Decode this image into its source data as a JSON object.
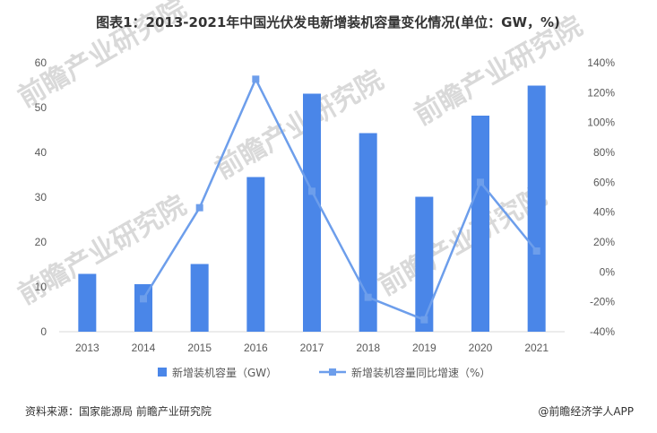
{
  "title": "图表1：2013-2021年中国光伏发电新增装机容量变化情况(单位：GW，%)",
  "source": "资料来源：国家能源局 前瞻产业研究院",
  "brand": "@前瞻经济学人APP",
  "watermark": "前瞻产业研究院",
  "colors": {
    "bar": "#4a86e8",
    "line": "#6d9eeb",
    "text": "#333333",
    "tick": "#595959"
  },
  "chart_data": {
    "type": "bar",
    "categories": [
      "2013",
      "2014",
      "2015",
      "2016",
      "2017",
      "2018",
      "2019",
      "2020",
      "2021"
    ],
    "series": [
      {
        "name": "新增装机容量（GW）",
        "type": "bar",
        "axis": "left",
        "values": [
          12.9,
          10.6,
          15.1,
          34.5,
          53.1,
          44.3,
          30.1,
          48.2,
          54.9
        ]
      },
      {
        "name": "新增装机容量同比增速（%）",
        "type": "line",
        "axis": "right",
        "values": [
          null,
          -18,
          43,
          129,
          54,
          -17,
          -32,
          60,
          14
        ]
      }
    ],
    "y_left": {
      "min": 0,
      "max": 60,
      "ticks": [
        "0",
        "10",
        "20",
        "30",
        "40",
        "50",
        "60"
      ]
    },
    "y_right": {
      "min": -40,
      "max": 140,
      "ticks": [
        "-40%",
        "-20%",
        "0%",
        "20%",
        "40%",
        "60%",
        "80%",
        "100%",
        "120%",
        "140%"
      ]
    },
    "legend_position": "bottom",
    "grid": false
  }
}
